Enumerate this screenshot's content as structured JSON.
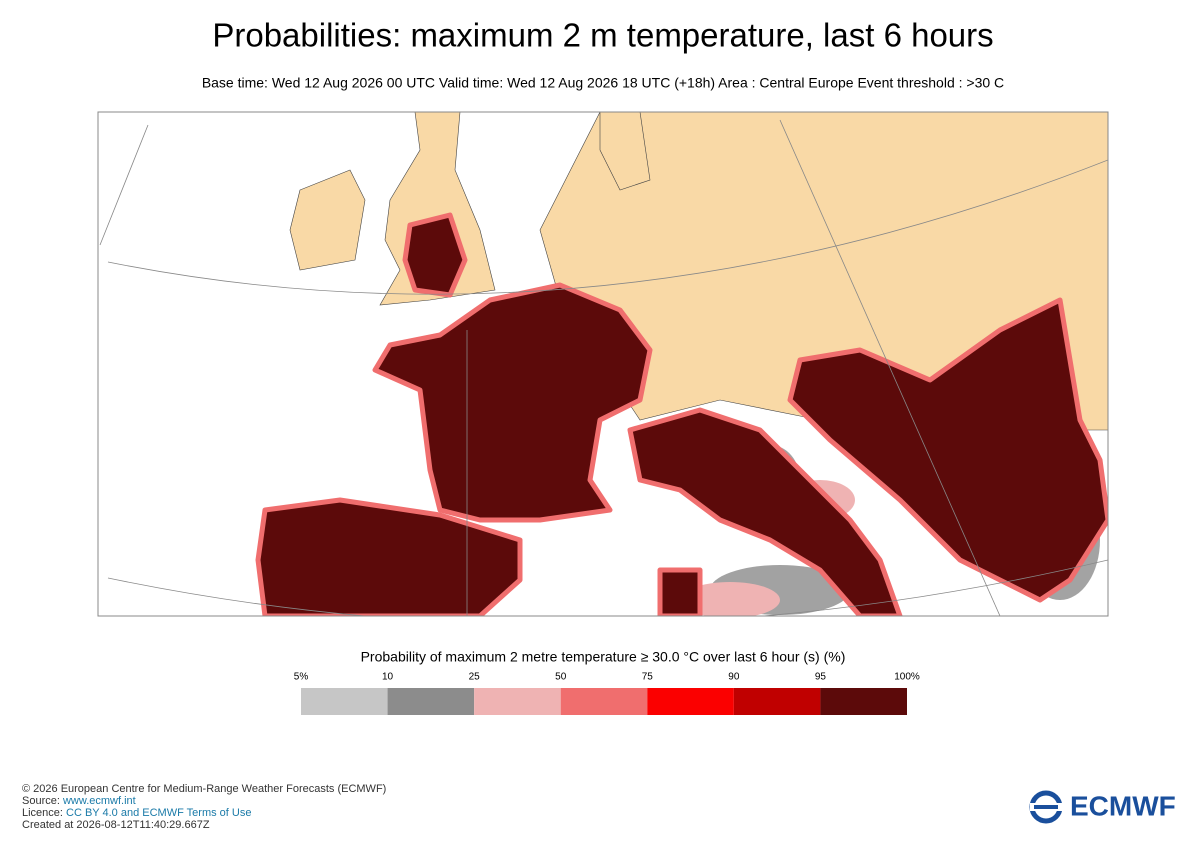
{
  "header": {
    "title": "Probabilities: maximum 2 m temperature, last 6 hours",
    "subtitle": "Base time: Wed 12 Aug 2026 00 UTC Valid time: Wed 12 Aug 2026 18 UTC (+18h) Area : Central Europe Event threshold : >30 C"
  },
  "legend": {
    "title": "Probability of maximum 2 metre temperature ≥ 30.0 °C over last 6 hour (s) (%)",
    "labels": [
      "5%",
      "10",
      "25",
      "50",
      "75",
      "90",
      "95",
      "100%"
    ],
    "colors": [
      "#c6c6c6",
      "#8c8c8c",
      "#efb3b3",
      "#f06e6e",
      "#fb0000",
      "#c00000",
      "#5c0a0a"
    ]
  },
  "footer": {
    "lines": [
      {
        "text": "© 2026 European Centre for Medium-Range Weather Forecasts (ECMWF)"
      },
      {
        "text": "Source: ",
        "link": "www.ecmwf.int"
      },
      {
        "text": "Licence: ",
        "link": "CC BY 4.0 and ECMWF Terms of Use"
      },
      {
        "text": "Created at 2026-08-12T11:40:29.667Z"
      }
    ]
  },
  "logo": "ECMWF"
}
